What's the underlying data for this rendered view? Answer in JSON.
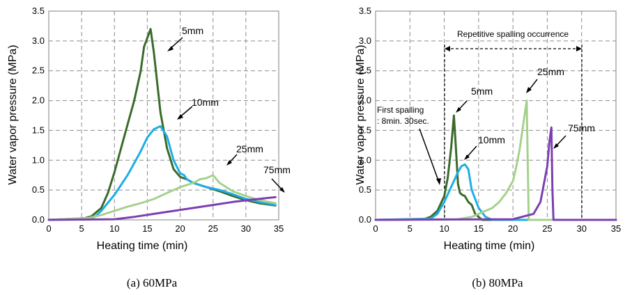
{
  "colors": {
    "5mm": "#3a6b2a",
    "10mm": "#1eaee4",
    "25mm": "#a6d18c",
    "75mm": "#7b3fb0"
  },
  "chart_data": [
    {
      "type": "line",
      "caption": "(a) 60MPa",
      "xlabel": "Heating time (min)",
      "ylabel": "Water vapor pressure (MPa)",
      "xlim": [
        0,
        35
      ],
      "ylim": [
        0,
        3.5
      ],
      "xticks": [
        "0",
        "5",
        "10",
        "15",
        "20",
        "25",
        "30",
        "35"
      ],
      "yticks": [
        "0.0",
        "0.5",
        "1.0",
        "1.5",
        "2.0",
        "2.5",
        "3.0",
        "3.5"
      ],
      "grid": true,
      "series": [
        {
          "name": "5mm",
          "color": "#3a6b2a",
          "x": [
            0,
            4,
            5.5,
            6.5,
            8,
            9,
            10,
            11,
            12,
            13,
            14,
            14.5,
            15,
            15.5,
            16,
            16.5,
            17,
            17.5,
            18,
            19,
            20,
            21,
            22,
            24,
            26,
            28,
            30,
            32,
            34.5
          ],
          "y": [
            0,
            0.02,
            0.03,
            0.06,
            0.2,
            0.45,
            0.8,
            1.2,
            1.6,
            2.0,
            2.5,
            2.9,
            3.05,
            3.2,
            2.8,
            2.3,
            1.8,
            1.5,
            1.2,
            0.85,
            0.72,
            0.68,
            0.62,
            0.55,
            0.48,
            0.4,
            0.33,
            0.28,
            0.24
          ]
        },
        {
          "name": "10mm",
          "color": "#1eaee4",
          "x": [
            0,
            6,
            7,
            8,
            10,
            12,
            13,
            14,
            15,
            16,
            17,
            18,
            19,
            20,
            20.6,
            21,
            22,
            24,
            26,
            28,
            30,
            32,
            34.5
          ],
          "y": [
            0,
            0.02,
            0.05,
            0.15,
            0.42,
            0.75,
            0.95,
            1.15,
            1.38,
            1.52,
            1.57,
            1.4,
            1.0,
            0.78,
            0.75,
            0.68,
            0.62,
            0.55,
            0.5,
            0.43,
            0.35,
            0.3,
            0.25
          ]
        },
        {
          "name": "25mm",
          "color": "#a6d18c",
          "x": [
            0,
            6,
            8,
            10,
            12,
            14,
            16,
            18,
            20,
            22,
            23,
            24,
            25,
            26,
            27,
            28,
            30,
            32,
            34.5
          ],
          "y": [
            0,
            0.03,
            0.08,
            0.15,
            0.22,
            0.28,
            0.35,
            0.45,
            0.55,
            0.62,
            0.68,
            0.7,
            0.75,
            0.62,
            0.55,
            0.48,
            0.4,
            0.33,
            0.28
          ]
        },
        {
          "name": "75mm",
          "color": "#7b3fb0",
          "x": [
            0,
            10,
            13,
            16,
            19,
            22,
            25,
            28,
            31,
            34.5
          ],
          "y": [
            0,
            0.01,
            0.05,
            0.1,
            0.15,
            0.2,
            0.25,
            0.3,
            0.34,
            0.38
          ]
        }
      ],
      "annotations": [
        "5mm",
        "10mm",
        "25mm",
        "75mm"
      ]
    },
    {
      "type": "line",
      "caption": "(b) 80MPa",
      "xlabel": "Heating time (min)",
      "ylabel": "Water vapor pressure (MPa)",
      "xlim": [
        0,
        35
      ],
      "ylim": [
        0,
        3.5
      ],
      "xticks": [
        "0",
        "5",
        "10",
        "15",
        "20",
        "25",
        "30",
        "35"
      ],
      "yticks": [
        "0.0",
        "0.5",
        "1.0",
        "1.5",
        "2.0",
        "2.5",
        "3.0",
        "3.5"
      ],
      "grid": true,
      "series": [
        {
          "name": "5mm",
          "color": "#3a6b2a",
          "x": [
            0,
            7,
            8,
            9,
            10,
            10.5,
            11,
            11.4,
            11.7,
            12,
            12.3,
            12.6,
            13,
            13.5,
            14,
            14.5,
            15,
            15.5,
            35
          ],
          "y": [
            0,
            0.01,
            0.05,
            0.15,
            0.4,
            0.7,
            1.2,
            1.75,
            1.2,
            0.6,
            0.45,
            0.42,
            0.4,
            0.3,
            0.25,
            0.1,
            0.05,
            0,
            0
          ]
        },
        {
          "name": "10mm",
          "color": "#1eaee4",
          "x": [
            0,
            8,
            9,
            10,
            11,
            12,
            12.5,
            13,
            13.5,
            14,
            15,
            16,
            17,
            35
          ],
          "y": [
            0,
            0.02,
            0.1,
            0.3,
            0.55,
            0.8,
            0.9,
            0.93,
            0.85,
            0.5,
            0.2,
            0.05,
            0,
            0
          ]
        },
        {
          "name": "25mm",
          "color": "#a6d18c",
          "x": [
            0,
            12,
            14,
            16,
            17,
            18,
            19,
            20,
            20.5,
            21,
            21.5,
            22,
            22.15,
            22.3,
            35
          ],
          "y": [
            0,
            0.01,
            0.05,
            0.15,
            0.2,
            0.3,
            0.45,
            0.65,
            0.9,
            1.2,
            1.6,
            2.0,
            1.0,
            0,
            0
          ]
        },
        {
          "name": "75mm",
          "color": "#7b3fb0",
          "x": [
            0,
            20,
            23,
            24,
            24.5,
            25,
            25.3,
            25.6,
            25.75,
            25.9,
            35
          ],
          "y": [
            0,
            0.01,
            0.1,
            0.3,
            0.6,
            0.9,
            1.3,
            1.55,
            0.5,
            0,
            0
          ]
        }
      ],
      "annotations": [
        "First spalling",
        ": 8min. 30sec.",
        "5mm",
        "10mm",
        "25mm",
        "75mm",
        "Repetitive spalling occurrence"
      ]
    }
  ]
}
